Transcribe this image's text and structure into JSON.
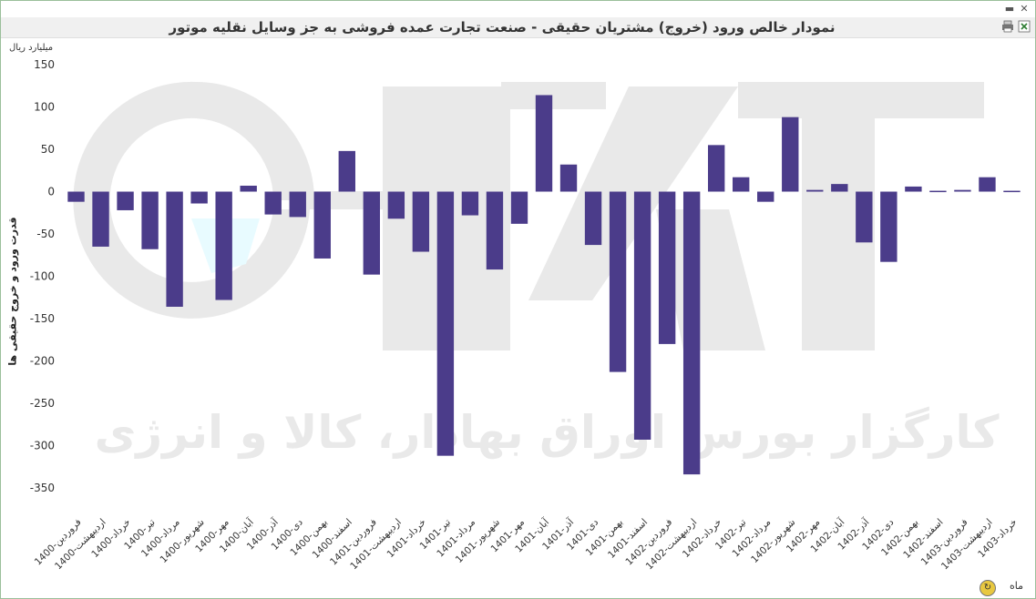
{
  "window": {
    "minimize_glyph": "▬",
    "close_glyph": "✕"
  },
  "title": "نمودار خالص ورود (خروج) مشتریان حقیقی - صنعت تجارت عمده فروشی به جز وسایل نقلیه موتور",
  "toolbar": {
    "print_icon": "print-icon",
    "export_icon": "excel-export-icon"
  },
  "footer": {
    "period_label": "ماه"
  },
  "watermark_text": "کارگزار بورس اوراق بهادار، کالا و انرژی",
  "colors": {
    "bar": "#4b3c8a",
    "watermark": "#e9e9e9",
    "accent_watermark": "#e8fbff"
  },
  "chart_data": {
    "type": "bar",
    "title": "نمودار خالص ورود (خروج) مشتریان حقیقی - صنعت تجارت عمده فروشی به جز وسایل نقلیه موتور",
    "unit": "میلیارد ریال",
    "ylabel": "قدرت ورود و خروج حقیقی ها",
    "xlabel": "",
    "ylim": [
      -350,
      150
    ],
    "yticks": [
      150,
      100,
      50,
      0,
      -50,
      -100,
      -150,
      -200,
      -250,
      -300,
      -350
    ],
    "grid": false,
    "categories": [
      "1400-فروردین",
      "1400-اردیبهشت",
      "1400-خرداد",
      "1400-تیر",
      "1400-مرداد",
      "1400-شهریور",
      "1400-مهر",
      "1400-آبان",
      "1400-آذر",
      "1400-دی",
      "1400-بهمن",
      "1400-اسفند",
      "1401-فروردین",
      "1401-اردیبهشت",
      "1401-خرداد",
      "1401-تیر",
      "1401-مرداد",
      "1401-شهریور",
      "1401-مهر",
      "1401-آبان",
      "1401-آذر",
      "1401-دی",
      "1401-بهمن",
      "1401-اسفند",
      "1402-فروردین",
      "1402-اردیبهشت",
      "1402-خرداد",
      "1402-تیر",
      "1402-مرداد",
      "1402-شهریور",
      "1402-مهر",
      "1402-آبان",
      "1402-آذر",
      "1402-دی",
      "1402-بهمن",
      "1402-اسفند",
      "1403-فروردین",
      "1403-اردیبهشت",
      "1403-خرداد"
    ],
    "values": [
      -12,
      -65,
      -22,
      -68,
      -136,
      -14,
      -128,
      7,
      -27,
      -30,
      -79,
      48,
      -98,
      -32,
      -71,
      -312,
      -28,
      -92,
      -38,
      114,
      32,
      -63,
      -213,
      -293,
      -180,
      -334,
      55,
      17,
      -12,
      88,
      2,
      9,
      -60,
      -83,
      6,
      1,
      2,
      17,
      1
    ]
  }
}
